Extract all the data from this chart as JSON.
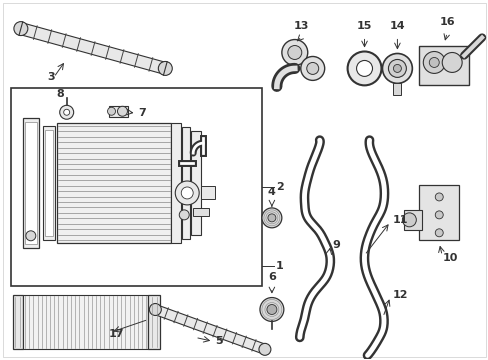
{
  "bg_color": "#ffffff",
  "lc": "#333333",
  "figsize": [
    4.89,
    3.6
  ],
  "dpi": 100
}
